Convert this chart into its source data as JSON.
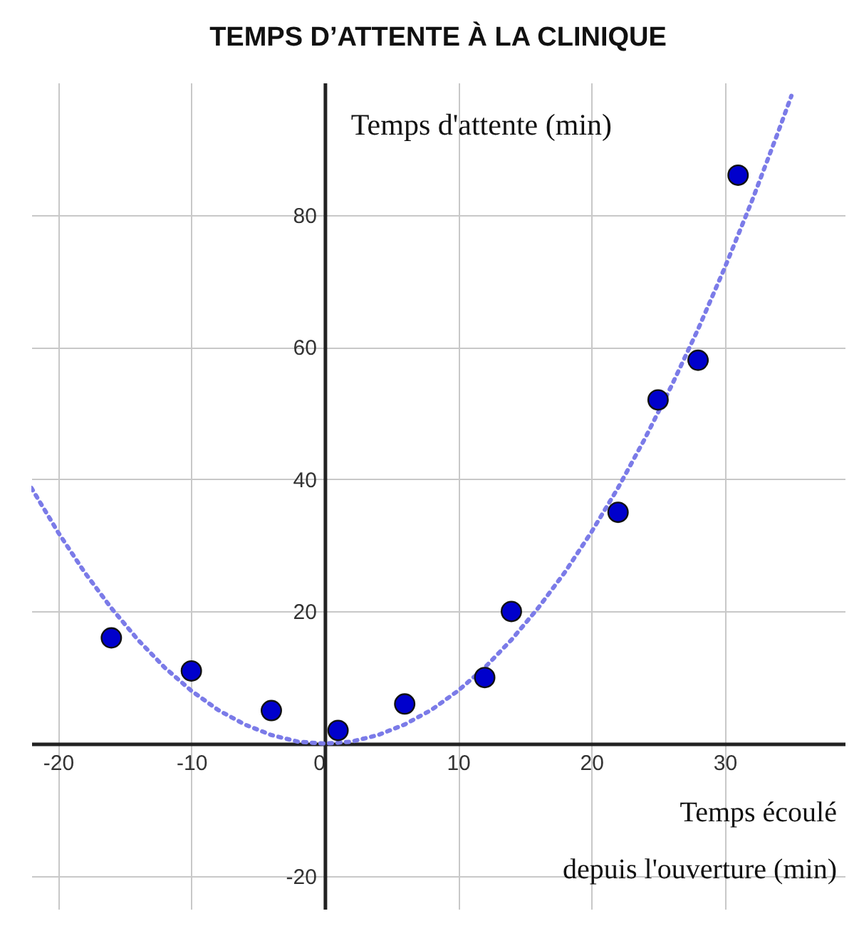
{
  "chart_data": {
    "type": "scatter",
    "title": "TEMPS D’ATTENTE À LA CLINIQUE",
    "xlabel": "Temps écoulé\ndepuis l'ouverture (min)",
    "ylabel": "Temps d'attente (min)",
    "xlim": [
      -22,
      39
    ],
    "ylim": [
      -25,
      100
    ],
    "xticks": [
      -20,
      -10,
      0,
      10,
      20,
      30
    ],
    "yticks": [
      -20,
      {
        "value": 0,
        "label": null
      },
      20,
      40,
      60,
      80
    ],
    "grid": true,
    "marker": "circle",
    "series": [
      {
        "color": "#0000cc",
        "x": [
          -16,
          -10,
          -4,
          1,
          6,
          12,
          14,
          22,
          25,
          28,
          31
        ],
        "values": [
          16,
          11,
          5,
          2,
          6,
          10,
          20,
          35,
          52,
          58,
          86
        ]
      },
      {
        "type": "line",
        "color": "#7b7be8",
        "line_style": "dotted",
        "marker": "none",
        "x": [
          -22,
          -20,
          -18,
          -16,
          -14,
          -12,
          -10,
          -8,
          -6,
          -4,
          -2,
          0,
          2,
          4,
          6,
          8,
          10,
          12,
          14,
          16,
          18,
          20,
          22,
          24,
          26,
          28,
          30,
          32,
          34,
          35
        ],
        "values": [
          38.7,
          32,
          25.9,
          20.5,
          15.7,
          11.5,
          8,
          5.1,
          2.9,
          1.3,
          0.3,
          0,
          0.3,
          1.3,
          2.9,
          5.1,
          8,
          11.5,
          15.7,
          20.5,
          25.9,
          32,
          38.7,
          46.1,
          54.1,
          62.7,
          72,
          81.9,
          92.5,
          98
        ]
      }
    ]
  }
}
